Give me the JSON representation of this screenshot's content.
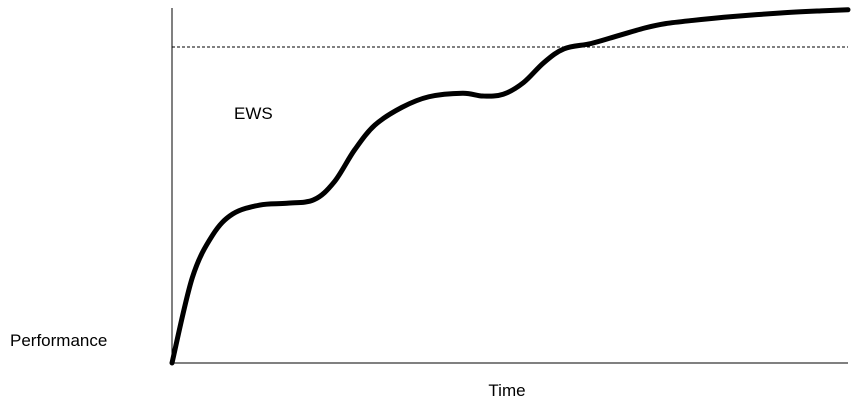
{
  "chart_data": {
    "type": "line",
    "xlabel": "Time",
    "ylabel": "Performance",
    "annotations": [
      {
        "text": "EWS"
      }
    ],
    "reference_lines": [
      {
        "orientation": "horizontal",
        "style": "dashed",
        "value": 0.89
      }
    ],
    "xlim": [
      0,
      1
    ],
    "ylim": [
      0,
      1
    ],
    "grid": false,
    "series": [
      {
        "x": [
          0,
          0.03,
          0.06,
          0.09,
          0.13,
          0.17,
          0.21,
          0.24,
          0.27,
          0.3,
          0.34,
          0.38,
          0.43,
          0.46,
          0.49,
          0.52,
          0.55,
          0.58,
          0.62,
          0.66,
          0.7,
          0.73,
          0.77,
          0.83,
          0.9,
          0.96,
          1.0
        ],
        "values": [
          0,
          0.24,
          0.36,
          0.42,
          0.445,
          0.45,
          0.46,
          0.51,
          0.6,
          0.67,
          0.72,
          0.75,
          0.76,
          0.752,
          0.757,
          0.79,
          0.846,
          0.885,
          0.9,
          0.922,
          0.944,
          0.956,
          0.965,
          0.976,
          0.986,
          0.992,
          0.995
        ]
      }
    ],
    "colors": {
      "line": "#000000",
      "axis": "#000000",
      "reference": "#000000"
    }
  }
}
